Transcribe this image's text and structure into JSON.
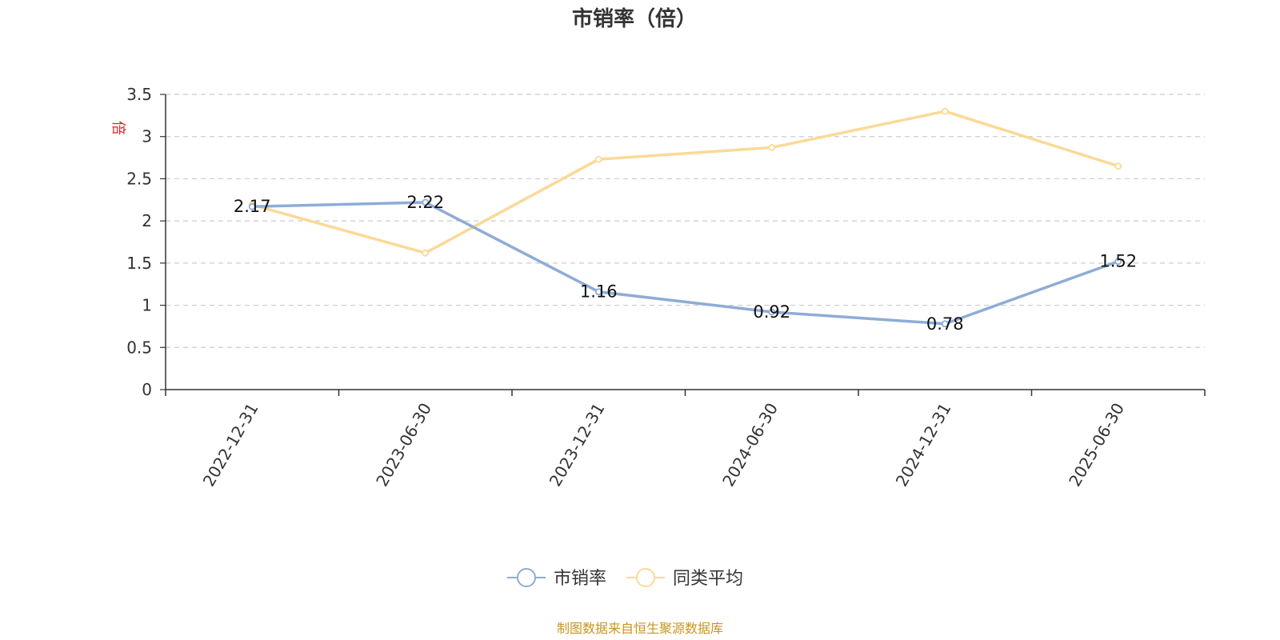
{
  "chart_data": {
    "type": "line",
    "title": "市销率（倍）",
    "y_unit": "倍",
    "categories": [
      "2022-12-31",
      "2023-06-30",
      "2023-12-31",
      "2024-06-30",
      "2024-12-31",
      "2025-06-30"
    ],
    "ylim": [
      0,
      3.5
    ],
    "yticks": [
      0,
      0.5,
      1,
      1.5,
      2,
      2.5,
      3,
      3.5
    ],
    "grid": true,
    "legend_position": "bottom-center",
    "series": [
      {
        "name": "市销率",
        "color": "#8eacd6",
        "values": [
          2.17,
          2.22,
          1.16,
          0.92,
          0.78,
          1.52
        ],
        "show_labels": true
      },
      {
        "name": "同类平均",
        "color": "#fbd997",
        "values": [
          2.19,
          1.62,
          2.73,
          2.87,
          3.3,
          2.65
        ],
        "show_labels": false
      }
    ],
    "source": "制图数据来自恒生聚源数据库"
  }
}
